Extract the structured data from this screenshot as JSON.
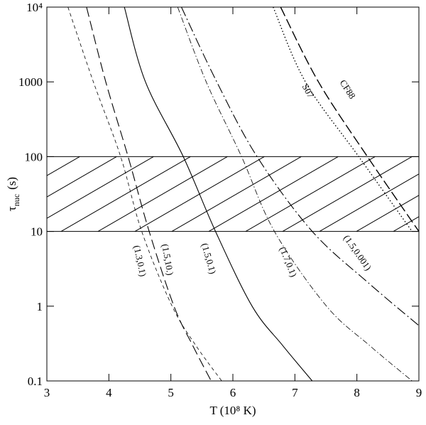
{
  "chart_data": {
    "type": "line",
    "xlabel": "T (10⁸ K)",
    "ylabel": {
      "symbol": "τ",
      "sub": "nuc",
      "unit": "(s)"
    },
    "xlim": [
      3,
      9
    ],
    "xticks": [
      3,
      4,
      5,
      6,
      7,
      8,
      9
    ],
    "ylim": [
      0.1,
      10000
    ],
    "log_y": true,
    "yticks": [
      0.1,
      1,
      10,
      100,
      1000,
      {
        "value": 10000,
        "label": "10⁴"
      }
    ],
    "band": {
      "y": [
        10,
        100
      ],
      "hatch": true
    },
    "series": [
      {
        "name": "(1.3,0.1)",
        "color": "#000000",
        "dash": "5,4",
        "width": 0.8,
        "x": [
          3.34,
          3.75,
          4.19,
          4.53,
          5.02,
          5.4,
          5.82
        ],
        "values": [
          10000,
          1000,
          100,
          10,
          1,
          0.3,
          0.1
        ]
      },
      {
        "name": "(1.5,10.)",
        "color": "#000000",
        "dash": "14,6",
        "width": 1.1,
        "x": [
          3.64,
          3.95,
          4.31,
          4.65,
          5.05,
          5.35,
          5.65
        ],
        "values": [
          10000,
          1000,
          100,
          10,
          1,
          0.3,
          0.1
        ]
      },
      {
        "name": "(1.5,0.1)",
        "color": "#000000",
        "dash": "none",
        "width": 1.1,
        "x": [
          4.25,
          4.59,
          5.2,
          5.72,
          6.31,
          6.8,
          7.28
        ],
        "values": [
          10000,
          1000,
          100,
          10,
          1,
          0.3,
          0.1
        ]
      },
      {
        "name": "(1.7,0.1)",
        "color": "#000000",
        "dash": "8,3,1.5,3",
        "width": 0.8,
        "x": [
          5.11,
          5.57,
          6.14,
          6.67,
          7.51,
          8.2,
          8.89
        ],
        "values": [
          10000,
          1000,
          100,
          10,
          1,
          0.3,
          0.1
        ]
      },
      {
        "name": "(1.5,0.001)",
        "color": "#000000",
        "dash": "14,4,2,4",
        "width": 1.1,
        "x": [
          5.17,
          5.74,
          6.39,
          7.28,
          8.2,
          9.0
        ],
        "values": [
          10000,
          1000,
          100,
          10,
          2,
          0.55
        ]
      },
      {
        "name": "S07",
        "color": "#000000",
        "dash": "1.5,3",
        "width": 1.4,
        "x": [
          6.65,
          7.17,
          8.03,
          8.89
        ],
        "values": [
          10000,
          1000,
          100,
          10
        ]
      },
      {
        "name": "CF88",
        "color": "#000000",
        "dash": "14,5",
        "width": 1.4,
        "x": [
          6.77,
          7.38,
          8.17,
          9.0
        ],
        "values": [
          10000,
          1000,
          100,
          10
        ]
      }
    ]
  }
}
